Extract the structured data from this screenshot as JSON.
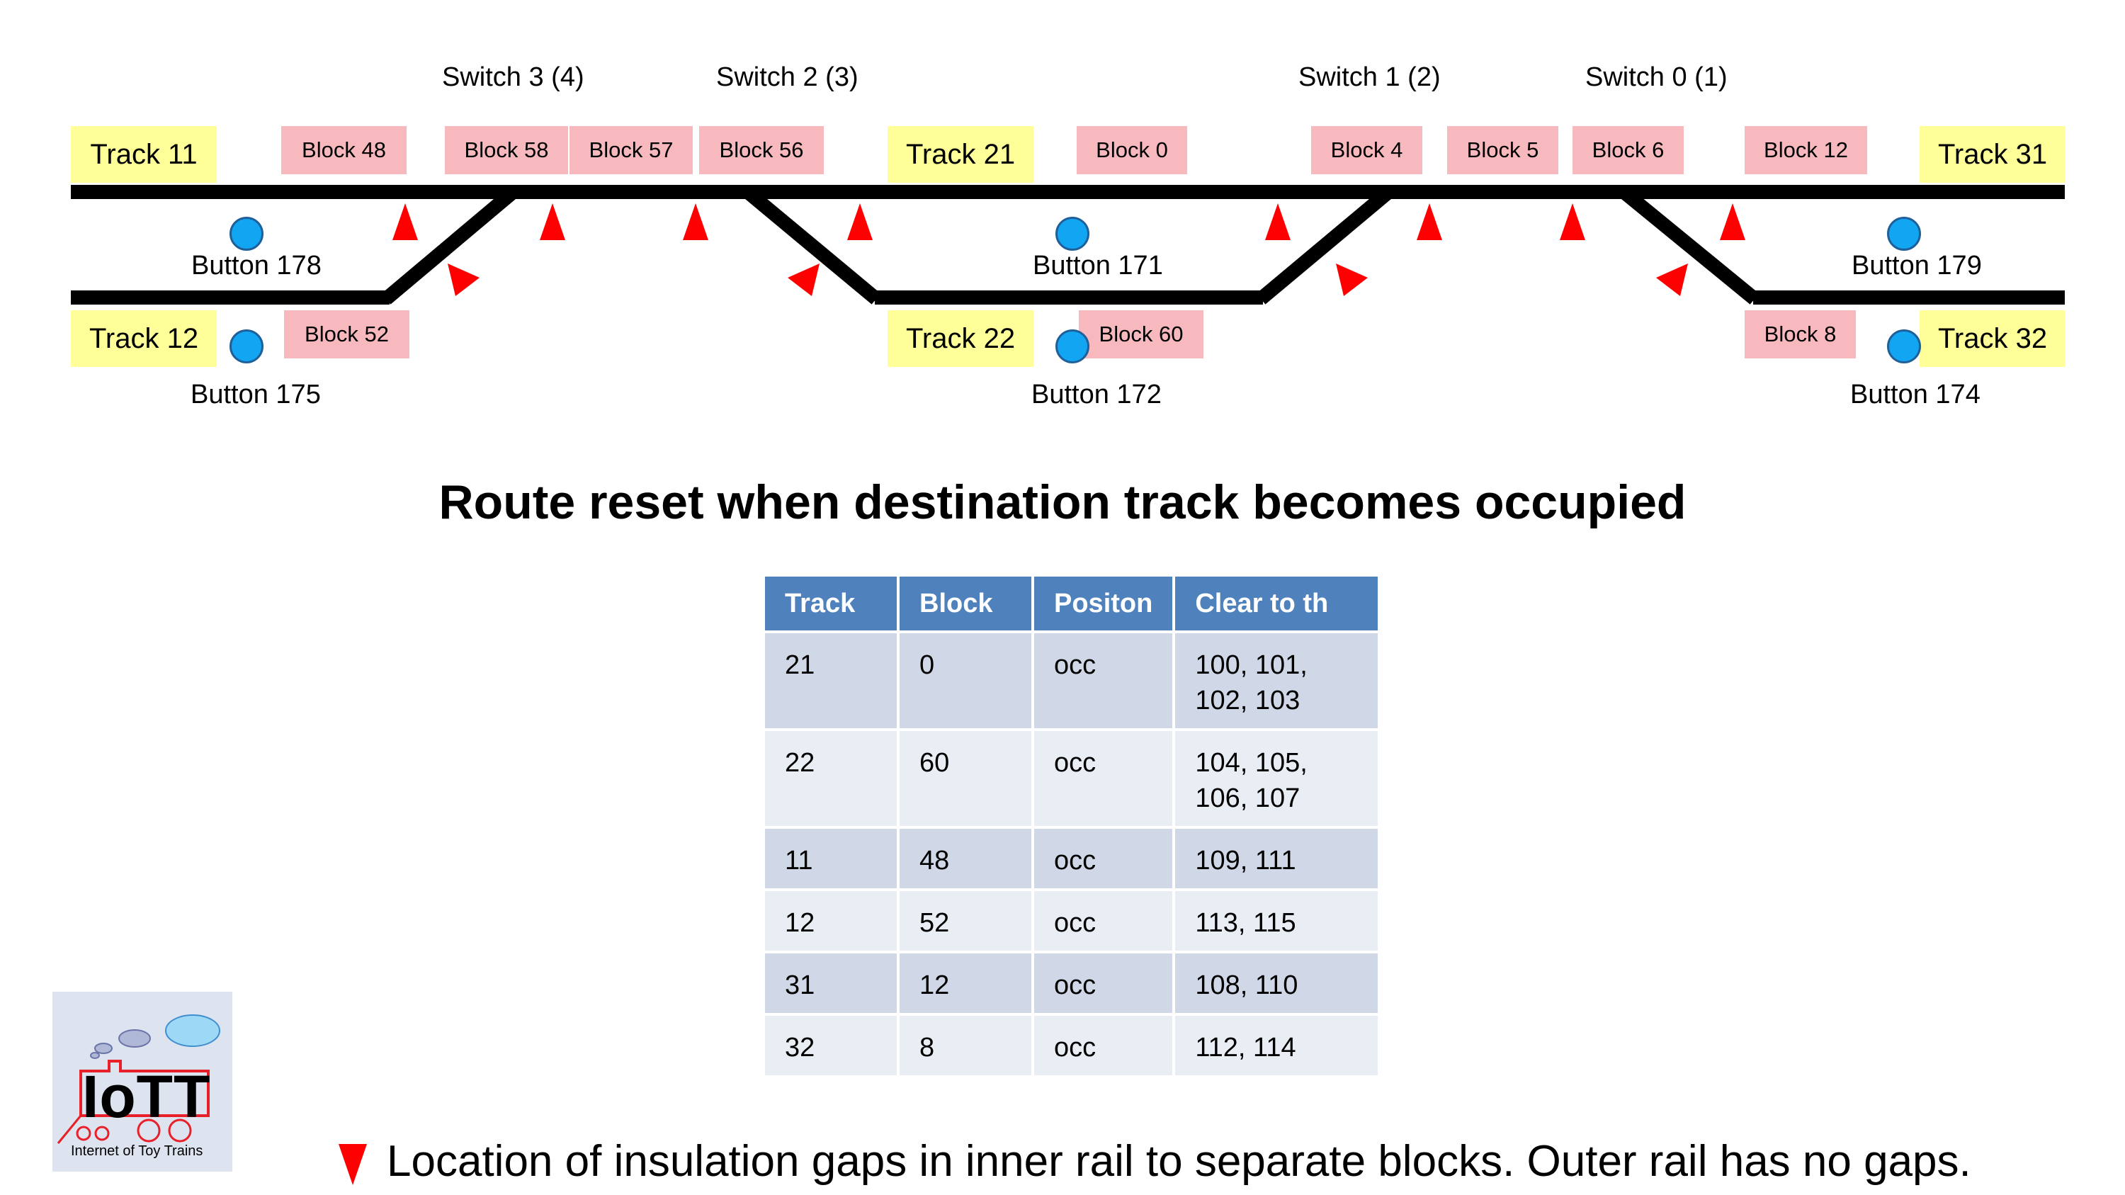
{
  "switches": [
    {
      "id": "sw3",
      "label": "Switch 3 (4)"
    },
    {
      "id": "sw2",
      "label": "Switch 2 (3)"
    },
    {
      "id": "sw1",
      "label": "Switch 1 (2)"
    },
    {
      "id": "sw0",
      "label": "Switch 0 (1)"
    }
  ],
  "tracks": [
    {
      "id": "t11",
      "label": "Track 11"
    },
    {
      "id": "t21",
      "label": "Track 21"
    },
    {
      "id": "t31",
      "label": "Track 31"
    },
    {
      "id": "t12",
      "label": "Track 12"
    },
    {
      "id": "t22",
      "label": "Track 22"
    },
    {
      "id": "t32",
      "label": "Track 32"
    }
  ],
  "blocks": [
    {
      "id": "b48",
      "label": "Block 48"
    },
    {
      "id": "b58",
      "label": "Block 58"
    },
    {
      "id": "b57",
      "label": "Block 57"
    },
    {
      "id": "b56",
      "label": "Block 56"
    },
    {
      "id": "b0",
      "label": "Block 0"
    },
    {
      "id": "b4",
      "label": "Block 4"
    },
    {
      "id": "b5",
      "label": "Block 5"
    },
    {
      "id": "b6",
      "label": "Block 6"
    },
    {
      "id": "b12",
      "label": "Block 12"
    },
    {
      "id": "b52",
      "label": "Block 52"
    },
    {
      "id": "b60",
      "label": "Block 60"
    },
    {
      "id": "b8",
      "label": "Block 8"
    }
  ],
  "buttons": [
    {
      "id": "btn178",
      "label": "Button 178"
    },
    {
      "id": "btn171",
      "label": "Button 171"
    },
    {
      "id": "btn179",
      "label": "Button 179"
    },
    {
      "id": "btn175",
      "label": "Button 175"
    },
    {
      "id": "btn172",
      "label": "Button 172"
    },
    {
      "id": "btn174",
      "label": "Button 174"
    }
  ],
  "colors": {
    "rail": "#000000",
    "track_fill": "#ffff99",
    "block_fill": "#f8b9be",
    "button_fill": "#12a6f2",
    "gap_marker": "#ff0000",
    "table_header": "#4f81bd",
    "table_row_odd": "#d0d8e8",
    "table_row_even": "#e9edf4"
  },
  "title": "Route reset when destination track becomes occupied",
  "table": {
    "headers": [
      "Track",
      "Block",
      "Positon",
      "Clear to th"
    ],
    "rows": [
      [
        "21",
        "0",
        "occ",
        "100, 101, 102, 103"
      ],
      [
        "22",
        "60",
        "occ",
        "104, 105, 106, 107"
      ],
      [
        "11",
        "48",
        "occ",
        "109, 111"
      ],
      [
        "12",
        "52",
        "occ",
        "113, 115"
      ],
      [
        "31",
        "12",
        "occ",
        "108, 110"
      ],
      [
        "32",
        "8",
        "occ",
        "112, 114"
      ]
    ]
  },
  "logo": {
    "text": "IoTT",
    "subtitle": "Internet of Toy Trains"
  },
  "legend": {
    "text": "Location of insulation gaps in inner rail to separate blocks. Outer rail has no gaps.",
    "icon": "red-triangle-icon"
  }
}
